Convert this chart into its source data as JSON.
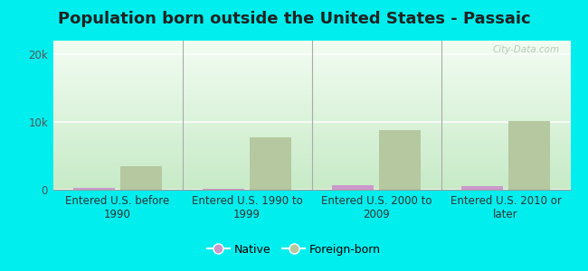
{
  "title": "Population born outside the United States - Passaic",
  "categories": [
    "Entered U.S. before\n1990",
    "Entered U.S. 1990 to\n1999",
    "Entered U.S. 2000 to\n2009",
    "Entered U.S. 2010 or\nlater"
  ],
  "native_values": [
    300,
    100,
    700,
    600
  ],
  "foreign_values": [
    3500,
    7800,
    8800,
    10200
  ],
  "native_color": "#cc99cc",
  "foreign_color": "#b5c8a0",
  "ylim": [
    0,
    22000
  ],
  "ytick_labels": [
    "0",
    "10k",
    "20k"
  ],
  "ytick_values": [
    0,
    10000,
    20000
  ],
  "bg_topleft": "#c8e8c8",
  "bg_topright": "#f0f8f0",
  "bg_bottomleft": "#d8f0d8",
  "bg_bottomright": "#ffffff",
  "outer_bg": "#00eeee",
  "bar_width": 0.32,
  "watermark": "City-Data.com",
  "title_fontsize": 13,
  "tick_fontsize": 8.5,
  "legend_fontsize": 9,
  "title_color": "#222222"
}
